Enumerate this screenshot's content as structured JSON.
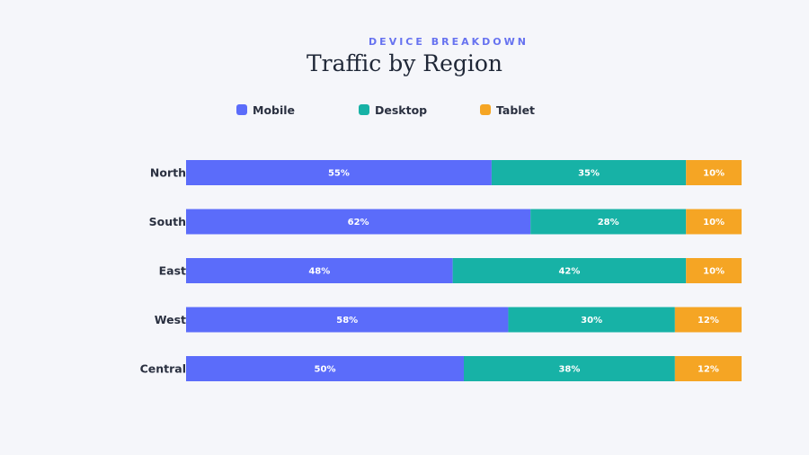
{
  "header": {
    "subtitle": "DEVICE BREAKDOWN",
    "title": "Traffic by Region"
  },
  "legend": [
    {
      "label": "Mobile",
      "color": "#5b6cfa"
    },
    {
      "label": "Desktop",
      "color": "#17b2a6"
    },
    {
      "label": "Tablet",
      "color": "#f5a524"
    }
  ],
  "chart_data": {
    "type": "bar",
    "orientation": "horizontal",
    "stacked": true,
    "title": "Traffic by Region",
    "subtitle": "DEVICE BREAKDOWN",
    "categories": [
      "North",
      "South",
      "East",
      "West",
      "Central"
    ],
    "series": [
      {
        "name": "Mobile",
        "color": "#5b6cfa",
        "values": [
          55,
          62,
          48,
          58,
          50
        ]
      },
      {
        "name": "Desktop",
        "color": "#17b2a6",
        "values": [
          35,
          28,
          42,
          30,
          38
        ]
      },
      {
        "name": "Tablet",
        "color": "#f5a524",
        "values": [
          10,
          10,
          10,
          12,
          12
        ]
      }
    ],
    "value_suffix": "%",
    "xlim": [
      0,
      100
    ],
    "legend_position": "top",
    "grid": false
  }
}
